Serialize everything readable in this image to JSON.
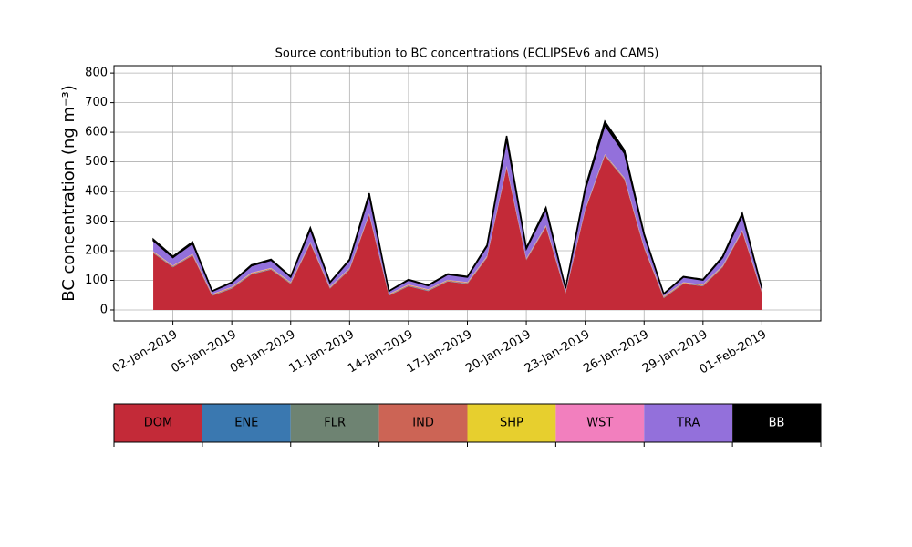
{
  "chart_data": {
    "type": "stacked_area",
    "title": "Source contribution to BC concentrations (ECLIPSEv6 and CAMS)",
    "y_label": "BC concentration (ng m⁻³)",
    "x": [
      "2019-01-01",
      "2019-01-02",
      "2019-01-03",
      "2019-01-04",
      "2019-01-05",
      "2019-01-06",
      "2019-01-07",
      "2019-01-08",
      "2019-01-09",
      "2019-01-10",
      "2019-01-11",
      "2019-01-12",
      "2019-01-13",
      "2019-01-14",
      "2019-01-15",
      "2019-01-16",
      "2019-01-17",
      "2019-01-18",
      "2019-01-19",
      "2019-01-20",
      "2019-01-21",
      "2019-01-22",
      "2019-01-23",
      "2019-01-24",
      "2019-01-25",
      "2019-01-26",
      "2019-01-27",
      "2019-01-28",
      "2019-01-29",
      "2019-01-30",
      "2019-01-31",
      "2019-02-01"
    ],
    "series": [
      {
        "name": "DOM",
        "color": "#c32a38",
        "values": [
          192,
          144,
          184,
          48,
          72,
          120,
          136,
          88,
          224,
          72,
          136,
          320,
          48,
          80,
          64,
          96,
          88,
          176,
          480,
          168,
          280,
          56,
          336,
          520,
          440,
          208,
          40,
          88,
          80,
          144,
          264,
          56
        ]
      },
      {
        "name": "ENE",
        "color": "#3a78b0",
        "values": [
          1,
          1,
          1,
          1,
          1,
          1,
          1,
          1,
          1,
          1,
          1,
          1,
          1,
          1,
          1,
          1,
          1,
          1,
          1,
          1,
          1,
          1,
          1,
          1,
          1,
          1,
          1,
          1,
          1,
          1,
          1,
          1
        ]
      },
      {
        "name": "FLR",
        "color": "#6e8372",
        "values": [
          1,
          1,
          1,
          1,
          1,
          1,
          1,
          1,
          1,
          1,
          1,
          1,
          1,
          1,
          1,
          1,
          1,
          1,
          1,
          1,
          1,
          1,
          1,
          1,
          1,
          1,
          1,
          1,
          1,
          1,
          1,
          1
        ]
      },
      {
        "name": "IND",
        "color": "#cc6455",
        "values": [
          2,
          2,
          2,
          2,
          2,
          2,
          2,
          2,
          2,
          2,
          2,
          2,
          2,
          2,
          2,
          2,
          2,
          2,
          2,
          2,
          2,
          2,
          2,
          2,
          2,
          2,
          2,
          2,
          2,
          2,
          2,
          2
        ]
      },
      {
        "name": "SHP",
        "color": "#e7cf2e",
        "values": [
          1,
          1,
          1,
          1,
          1,
          1,
          1,
          1,
          1,
          1,
          1,
          1,
          1,
          1,
          1,
          1,
          1,
          1,
          1,
          1,
          1,
          1,
          1,
          1,
          1,
          1,
          1,
          1,
          1,
          1,
          1,
          1
        ]
      },
      {
        "name": "WST",
        "color": "#f27fbe",
        "values": [
          1,
          1,
          1,
          1,
          1,
          1,
          1,
          1,
          1,
          1,
          1,
          1,
          1,
          1,
          1,
          1,
          1,
          1,
          1,
          1,
          1,
          1,
          1,
          1,
          1,
          1,
          1,
          1,
          1,
          1,
          1,
          1
        ]
      },
      {
        "name": "TRA",
        "color": "#9370db",
        "values": [
          36,
          27,
          35,
          9,
          14,
          23,
          26,
          17,
          42,
          14,
          26,
          60,
          9,
          15,
          12,
          18,
          17,
          33,
          90,
          32,
          53,
          11,
          63,
          98,
          83,
          39,
          8,
          17,
          15,
          27,
          50,
          11
        ]
      },
      {
        "name": "BB",
        "color": "#000000",
        "values": [
          5,
          4,
          5,
          1,
          2,
          3,
          3,
          2,
          6,
          2,
          3,
          8,
          1,
          2,
          2,
          2,
          2,
          4,
          12,
          4,
          7,
          1,
          8,
          13,
          11,
          5,
          1,
          2,
          2,
          4,
          7,
          1
        ]
      }
    ],
    "xlim": [
      "2018-12-30",
      "2019-02-04"
    ],
    "xticks": [
      {
        "value": "2019-01-02",
        "label": "02-Jan-2019"
      },
      {
        "value": "2019-01-05",
        "label": "05-Jan-2019"
      },
      {
        "value": "2019-01-08",
        "label": "08-Jan-2019"
      },
      {
        "value": "2019-01-11",
        "label": "11-Jan-2019"
      },
      {
        "value": "2019-01-14",
        "label": "14-Jan-2019"
      },
      {
        "value": "2019-01-17",
        "label": "17-Jan-2019"
      },
      {
        "value": "2019-01-20",
        "label": "20-Jan-2019"
      },
      {
        "value": "2019-01-23",
        "label": "23-Jan-2019"
      },
      {
        "value": "2019-01-26",
        "label": "26-Jan-2019"
      },
      {
        "value": "2019-01-29",
        "label": "29-Jan-2019"
      },
      {
        "value": "2019-02-01",
        "label": "01-Feb-2019"
      }
    ],
    "ylim": [
      -37,
      825
    ],
    "yticks": [
      0,
      100,
      200,
      300,
      400,
      500,
      600,
      700,
      800
    ],
    "grid": true
  }
}
